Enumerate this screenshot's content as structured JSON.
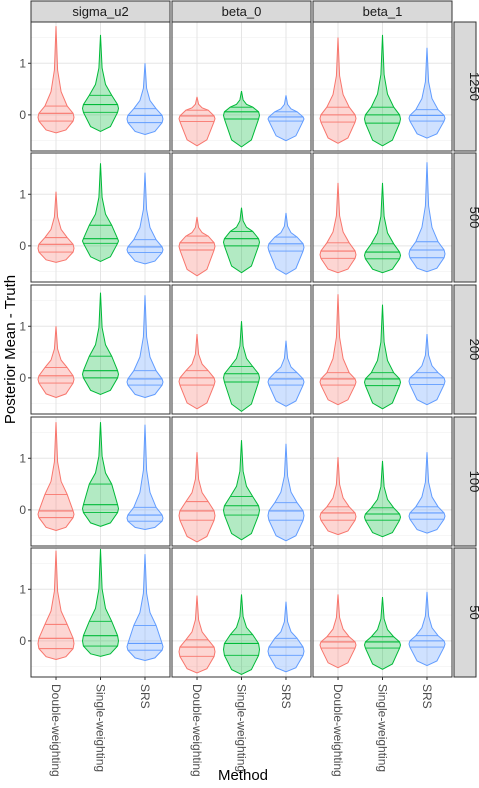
{
  "chart_data": {
    "type": "violin",
    "title": "",
    "xlabel": "Method",
    "ylabel": "Posterior Mean - Truth",
    "column_facets": [
      "sigma_u2",
      "beta_0",
      "beta_1"
    ],
    "row_facets": [
      "1250",
      "500",
      "200",
      "100",
      "50"
    ],
    "categories": [
      "Double-weighting",
      "Single-weighting",
      "SRS"
    ],
    "y_ticks": [
      0,
      1
    ],
    "ylim": [
      -0.7,
      1.8
    ],
    "grid": true,
    "colors": {
      "Double-weighting": "#F8766D",
      "Single-weighting": "#00BA38",
      "SRS": "#619CFF"
    },
    "panels": [
      {
        "row": "1250",
        "column": "sigma_u2",
        "violins": [
          {
            "method": "Double-weighting",
            "min": -0.35,
            "q1": -0.12,
            "median": 0.03,
            "q3": 0.17,
            "max": 1.72
          },
          {
            "method": "Single-weighting",
            "min": -0.32,
            "q1": 0.05,
            "median": 0.2,
            "q3": 0.38,
            "max": 1.55
          },
          {
            "method": "SRS",
            "min": -0.38,
            "q1": -0.15,
            "median": -0.01,
            "q3": 0.12,
            "max": 1.0
          }
        ]
      },
      {
        "row": "1250",
        "column": "beta_0",
        "violins": [
          {
            "method": "Double-weighting",
            "min": -0.6,
            "q1": -0.13,
            "median": -0.02,
            "q3": 0.09,
            "max": 0.35
          },
          {
            "method": "Single-weighting",
            "min": -0.62,
            "q1": -0.08,
            "median": 0.06,
            "q3": 0.15,
            "max": 0.46
          },
          {
            "method": "SRS",
            "min": -0.5,
            "q1": -0.12,
            "median": -0.04,
            "q3": 0.06,
            "max": 0.38
          }
        ]
      },
      {
        "row": "1250",
        "column": "beta_1",
        "violins": [
          {
            "method": "Double-weighting",
            "min": -0.55,
            "q1": -0.14,
            "median": 0.0,
            "q3": 0.15,
            "max": 1.5
          },
          {
            "method": "Single-weighting",
            "min": -0.6,
            "q1": -0.16,
            "median": 0.0,
            "q3": 0.15,
            "max": 1.55
          },
          {
            "method": "SRS",
            "min": -0.45,
            "q1": -0.12,
            "median": -0.01,
            "q3": 0.1,
            "max": 1.3
          }
        ]
      },
      {
        "row": "500",
        "column": "sigma_u2",
        "violins": [
          {
            "method": "Double-weighting",
            "min": -0.32,
            "q1": -0.12,
            "median": 0.03,
            "q3": 0.16,
            "max": 1.05
          },
          {
            "method": "Single-weighting",
            "min": -0.3,
            "q1": 0.05,
            "median": 0.14,
            "q3": 0.4,
            "max": 1.6
          },
          {
            "method": "SRS",
            "min": -0.35,
            "q1": -0.13,
            "median": -0.02,
            "q3": 0.12,
            "max": 1.42
          }
        ]
      },
      {
        "row": "500",
        "column": "beta_0",
        "violins": [
          {
            "method": "Double-weighting",
            "min": -0.58,
            "q1": -0.08,
            "median": 0.06,
            "q3": 0.19,
            "max": 0.56
          },
          {
            "method": "Single-weighting",
            "min": -0.52,
            "q1": 0.0,
            "median": 0.14,
            "q3": 0.28,
            "max": 0.74
          },
          {
            "method": "SRS",
            "min": -0.55,
            "q1": -0.1,
            "median": 0.04,
            "q3": 0.17,
            "max": 0.64
          }
        ]
      },
      {
        "row": "500",
        "column": "beta_1",
        "violins": [
          {
            "method": "Double-weighting",
            "min": -0.52,
            "q1": -0.24,
            "median": -0.1,
            "q3": 0.06,
            "max": 1.22
          },
          {
            "method": "Single-weighting",
            "min": -0.52,
            "q1": -0.25,
            "median": -0.12,
            "q3": 0.04,
            "max": 1.22
          },
          {
            "method": "SRS",
            "min": -0.5,
            "q1": -0.23,
            "median": -0.08,
            "q3": 0.08,
            "max": 1.62
          }
        ]
      },
      {
        "row": "200",
        "column": "sigma_u2",
        "violins": [
          {
            "method": "Double-weighting",
            "min": -0.38,
            "q1": -0.1,
            "median": 0.04,
            "q3": 0.2,
            "max": 1.0
          },
          {
            "method": "Single-weighting",
            "min": -0.32,
            "q1": 0.0,
            "median": 0.14,
            "q3": 0.42,
            "max": 1.65
          },
          {
            "method": "SRS",
            "min": -0.38,
            "q1": -0.14,
            "median": -0.02,
            "q3": 0.14,
            "max": 1.6
          }
        ]
      },
      {
        "row": "200",
        "column": "beta_0",
        "violins": [
          {
            "method": "Double-weighting",
            "min": -0.6,
            "q1": -0.14,
            "median": 0.0,
            "q3": 0.14,
            "max": 0.85
          },
          {
            "method": "Single-weighting",
            "min": -0.65,
            "q1": -0.08,
            "median": 0.08,
            "q3": 0.22,
            "max": 1.1
          },
          {
            "method": "SRS",
            "min": -0.55,
            "q1": -0.14,
            "median": -0.02,
            "q3": 0.1,
            "max": 0.72
          }
        ]
      },
      {
        "row": "200",
        "column": "beta_1",
        "violins": [
          {
            "method": "Double-weighting",
            "min": -0.52,
            "q1": -0.14,
            "median": -0.02,
            "q3": 0.1,
            "max": 1.62
          },
          {
            "method": "Single-weighting",
            "min": -0.6,
            "q1": -0.15,
            "median": -0.02,
            "q3": 0.1,
            "max": 1.42
          },
          {
            "method": "SRS",
            "min": -0.52,
            "q1": -0.13,
            "median": 0.0,
            "q3": 0.1,
            "max": 0.85
          }
        ]
      },
      {
        "row": "100",
        "column": "sigma_u2",
        "violins": [
          {
            "method": "Double-weighting",
            "min": -0.4,
            "q1": -0.15,
            "median": -0.02,
            "q3": 0.3,
            "max": 1.7
          },
          {
            "method": "Single-weighting",
            "min": -0.32,
            "q1": -0.05,
            "median": 0.1,
            "q3": 0.5,
            "max": 1.7
          },
          {
            "method": "SRS",
            "min": -0.38,
            "q1": -0.22,
            "median": -0.1,
            "q3": 0.05,
            "max": 1.65
          }
        ]
      },
      {
        "row": "100",
        "column": "beta_0",
        "violins": [
          {
            "method": "Double-weighting",
            "min": -0.62,
            "q1": -0.2,
            "median": -0.02,
            "q3": 0.16,
            "max": 1.12
          },
          {
            "method": "Single-weighting",
            "min": -0.58,
            "q1": -0.1,
            "median": 0.08,
            "q3": 0.26,
            "max": 1.35
          },
          {
            "method": "SRS",
            "min": -0.6,
            "q1": -0.2,
            "median": -0.02,
            "q3": 0.14,
            "max": 1.28
          }
        ]
      },
      {
        "row": "100",
        "column": "beta_1",
        "violins": [
          {
            "method": "Double-weighting",
            "min": -0.48,
            "q1": -0.2,
            "median": -0.06,
            "q3": 0.06,
            "max": 1.02
          },
          {
            "method": "Single-weighting",
            "min": -0.52,
            "q1": -0.2,
            "median": -0.08,
            "q3": 0.04,
            "max": 0.95
          },
          {
            "method": "SRS",
            "min": -0.45,
            "q1": -0.18,
            "median": -0.06,
            "q3": 0.06,
            "max": 1.12
          }
        ]
      },
      {
        "row": "50",
        "column": "sigma_u2",
        "violins": [
          {
            "method": "Double-weighting",
            "min": -0.36,
            "q1": -0.15,
            "median": 0.05,
            "q3": 0.32,
            "max": 1.75
          },
          {
            "method": "Single-weighting",
            "min": -0.3,
            "q1": -0.1,
            "median": 0.1,
            "q3": 0.38,
            "max": 1.78
          },
          {
            "method": "SRS",
            "min": -0.38,
            "q1": -0.18,
            "median": -0.05,
            "q3": 0.3,
            "max": 1.68
          }
        ]
      },
      {
        "row": "50",
        "column": "beta_0",
        "violins": [
          {
            "method": "Double-weighting",
            "min": -0.62,
            "q1": -0.3,
            "median": -0.12,
            "q3": 0.02,
            "max": 0.88
          },
          {
            "method": "Single-weighting",
            "min": -0.65,
            "q1": -0.28,
            "median": -0.05,
            "q3": 0.12,
            "max": 0.9
          },
          {
            "method": "SRS",
            "min": -0.6,
            "q1": -0.28,
            "median": -0.12,
            "q3": 0.05,
            "max": 0.76
          }
        ]
      },
      {
        "row": "50",
        "column": "beta_1",
        "violins": [
          {
            "method": "Double-weighting",
            "min": -0.52,
            "q1": -0.14,
            "median": -0.02,
            "q3": 0.08,
            "max": 0.9
          },
          {
            "method": "Single-weighting",
            "min": -0.55,
            "q1": -0.14,
            "median": -0.02,
            "q3": 0.08,
            "max": 0.85
          },
          {
            "method": "SRS",
            "min": -0.48,
            "q1": -0.12,
            "median": 0.0,
            "q3": 0.1,
            "max": 0.95
          }
        ]
      }
    ]
  }
}
